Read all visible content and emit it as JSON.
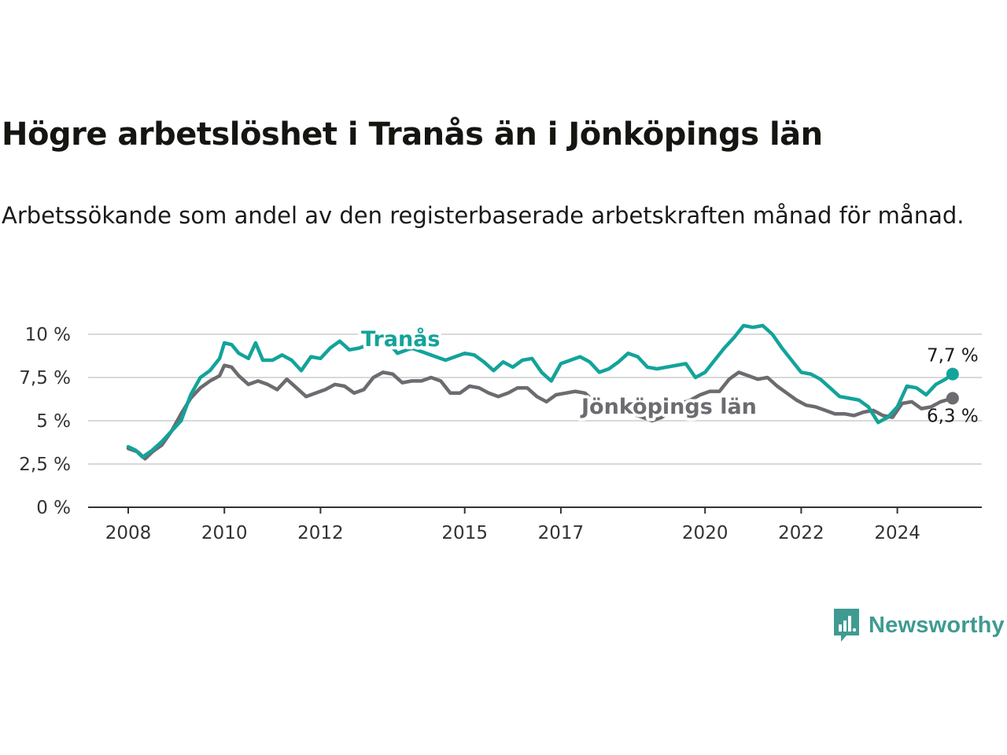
{
  "header": {
    "title": "Högre arbetslöshet i Tranås än i Jönköpings län",
    "subtitle": "Arbetssökande som andel av den registerbaserade arbetskraften månad för månad."
  },
  "brand": {
    "name": "Newsworthy",
    "icon": "newsworthy-logo-icon",
    "color": "#3f9b91"
  },
  "chart_data": {
    "type": "line",
    "title": "Högre arbetslöshet i Tranås än i Jönköpings län",
    "subtitle": "Arbetssökande som andel av den registerbaserade arbetskraften månad för månad.",
    "xlabel": "",
    "ylabel": "",
    "ylim": [
      0,
      10.5
    ],
    "xlim": [
      2007.5,
      2025.5
    ],
    "grid": "horizontal",
    "y_ticks": [
      {
        "value": 0,
        "label": "0 %"
      },
      {
        "value": 2.5,
        "label": "2,5 %"
      },
      {
        "value": 5,
        "label": "5 %"
      },
      {
        "value": 7.5,
        "label": "7,5 %"
      },
      {
        "value": 10,
        "label": "10 %"
      }
    ],
    "x_ticks": [
      {
        "value": 2008,
        "label": "2008"
      },
      {
        "value": 2010,
        "label": "2010"
      },
      {
        "value": 2012,
        "label": "2012"
      },
      {
        "value": 2015,
        "label": "2015"
      },
      {
        "value": 2017,
        "label": "2017"
      },
      {
        "value": 2020,
        "label": "2020"
      },
      {
        "value": 2022,
        "label": "2022"
      },
      {
        "value": 2024,
        "label": "2024"
      }
    ],
    "series": [
      {
        "name": "Tranås",
        "color": "#13a39a",
        "end_label": "7,7 %",
        "points": [
          [
            2008.0,
            3.5
          ],
          [
            2008.15,
            3.3
          ],
          [
            2008.3,
            2.9
          ],
          [
            2008.5,
            3.3
          ],
          [
            2008.7,
            3.8
          ],
          [
            2008.9,
            4.4
          ],
          [
            2009.1,
            5.0
          ],
          [
            2009.3,
            6.5
          ],
          [
            2009.5,
            7.5
          ],
          [
            2009.7,
            7.9
          ],
          [
            2009.9,
            8.6
          ],
          [
            2010.0,
            9.5
          ],
          [
            2010.15,
            9.4
          ],
          [
            2010.3,
            8.9
          ],
          [
            2010.5,
            8.6
          ],
          [
            2010.65,
            9.5
          ],
          [
            2010.8,
            8.5
          ],
          [
            2011.0,
            8.5
          ],
          [
            2011.2,
            8.8
          ],
          [
            2011.4,
            8.5
          ],
          [
            2011.6,
            7.9
          ],
          [
            2011.8,
            8.7
          ],
          [
            2012.0,
            8.6
          ],
          [
            2012.2,
            9.2
          ],
          [
            2012.4,
            9.6
          ],
          [
            2012.6,
            9.1
          ],
          [
            2012.8,
            9.2
          ],
          [
            2013.0,
            9.4
          ],
          [
            2013.3,
            9.9
          ],
          [
            2013.6,
            8.9
          ],
          [
            2013.9,
            9.2
          ],
          [
            2014.1,
            9.0
          ],
          [
            2014.4,
            8.7
          ],
          [
            2014.6,
            8.5
          ],
          [
            2014.8,
            8.7
          ],
          [
            2015.0,
            8.9
          ],
          [
            2015.2,
            8.8
          ],
          [
            2015.4,
            8.4
          ],
          [
            2015.6,
            7.9
          ],
          [
            2015.8,
            8.4
          ],
          [
            2016.0,
            8.1
          ],
          [
            2016.2,
            8.5
          ],
          [
            2016.4,
            8.6
          ],
          [
            2016.6,
            7.8
          ],
          [
            2016.8,
            7.3
          ],
          [
            2017.0,
            8.3
          ],
          [
            2017.2,
            8.5
          ],
          [
            2017.4,
            8.7
          ],
          [
            2017.6,
            8.4
          ],
          [
            2017.8,
            7.8
          ],
          [
            2018.0,
            8.0
          ],
          [
            2018.2,
            8.4
          ],
          [
            2018.4,
            8.9
          ],
          [
            2018.6,
            8.7
          ],
          [
            2018.8,
            8.1
          ],
          [
            2019.0,
            8.0
          ],
          [
            2019.2,
            8.1
          ],
          [
            2019.4,
            8.2
          ],
          [
            2019.6,
            8.3
          ],
          [
            2019.8,
            7.5
          ],
          [
            2020.0,
            7.8
          ],
          [
            2020.2,
            8.5
          ],
          [
            2020.4,
            9.2
          ],
          [
            2020.6,
            9.8
          ],
          [
            2020.8,
            10.5
          ],
          [
            2021.0,
            10.4
          ],
          [
            2021.2,
            10.5
          ],
          [
            2021.4,
            10.0
          ],
          [
            2021.6,
            9.2
          ],
          [
            2021.8,
            8.5
          ],
          [
            2022.0,
            7.8
          ],
          [
            2022.2,
            7.7
          ],
          [
            2022.4,
            7.4
          ],
          [
            2022.6,
            6.9
          ],
          [
            2022.8,
            6.4
          ],
          [
            2023.0,
            6.3
          ],
          [
            2023.2,
            6.2
          ],
          [
            2023.4,
            5.8
          ],
          [
            2023.6,
            4.9
          ],
          [
            2023.8,
            5.2
          ],
          [
            2024.0,
            5.8
          ],
          [
            2024.2,
            7.0
          ],
          [
            2024.4,
            6.9
          ],
          [
            2024.6,
            6.5
          ],
          [
            2024.8,
            7.1
          ],
          [
            2025.0,
            7.4
          ],
          [
            2025.15,
            7.7
          ]
        ]
      },
      {
        "name": "Jönköpings län",
        "color": "#6b6b70",
        "end_label": "6,3 %",
        "points": [
          [
            2008.0,
            3.4
          ],
          [
            2008.2,
            3.2
          ],
          [
            2008.35,
            2.8
          ],
          [
            2008.5,
            3.2
          ],
          [
            2008.7,
            3.6
          ],
          [
            2008.9,
            4.4
          ],
          [
            2009.1,
            5.4
          ],
          [
            2009.3,
            6.3
          ],
          [
            2009.5,
            6.9
          ],
          [
            2009.7,
            7.3
          ],
          [
            2009.9,
            7.6
          ],
          [
            2010.0,
            8.2
          ],
          [
            2010.15,
            8.1
          ],
          [
            2010.3,
            7.6
          ],
          [
            2010.5,
            7.1
          ],
          [
            2010.7,
            7.3
          ],
          [
            2010.9,
            7.1
          ],
          [
            2011.1,
            6.8
          ],
          [
            2011.3,
            7.4
          ],
          [
            2011.5,
            6.9
          ],
          [
            2011.7,
            6.4
          ],
          [
            2011.9,
            6.6
          ],
          [
            2012.1,
            6.8
          ],
          [
            2012.3,
            7.1
          ],
          [
            2012.5,
            7.0
          ],
          [
            2012.7,
            6.6
          ],
          [
            2012.9,
            6.8
          ],
          [
            2013.1,
            7.5
          ],
          [
            2013.3,
            7.8
          ],
          [
            2013.5,
            7.7
          ],
          [
            2013.7,
            7.2
          ],
          [
            2013.9,
            7.3
          ],
          [
            2014.1,
            7.3
          ],
          [
            2014.3,
            7.5
          ],
          [
            2014.5,
            7.3
          ],
          [
            2014.7,
            6.6
          ],
          [
            2014.9,
            6.6
          ],
          [
            2015.1,
            7.0
          ],
          [
            2015.3,
            6.9
          ],
          [
            2015.5,
            6.6
          ],
          [
            2015.7,
            6.4
          ],
          [
            2015.9,
            6.6
          ],
          [
            2016.1,
            6.9
          ],
          [
            2016.3,
            6.9
          ],
          [
            2016.5,
            6.4
          ],
          [
            2016.7,
            6.1
          ],
          [
            2016.9,
            6.5
          ],
          [
            2017.1,
            6.6
          ],
          [
            2017.3,
            6.7
          ],
          [
            2017.5,
            6.6
          ],
          [
            2017.7,
            6.1
          ],
          [
            2017.9,
            5.6
          ],
          [
            2018.1,
            5.4
          ],
          [
            2018.3,
            5.4
          ],
          [
            2018.5,
            5.4
          ],
          [
            2018.7,
            5.2
          ],
          [
            2018.9,
            5.0
          ],
          [
            2019.1,
            5.2
          ],
          [
            2019.3,
            5.6
          ],
          [
            2019.5,
            6.0
          ],
          [
            2019.7,
            6.2
          ],
          [
            2019.9,
            6.5
          ],
          [
            2020.1,
            6.7
          ],
          [
            2020.3,
            6.7
          ],
          [
            2020.5,
            7.4
          ],
          [
            2020.7,
            7.8
          ],
          [
            2020.9,
            7.6
          ],
          [
            2021.1,
            7.4
          ],
          [
            2021.3,
            7.5
          ],
          [
            2021.5,
            7.0
          ],
          [
            2021.7,
            6.6
          ],
          [
            2021.9,
            6.2
          ],
          [
            2022.1,
            5.9
          ],
          [
            2022.3,
            5.8
          ],
          [
            2022.5,
            5.6
          ],
          [
            2022.7,
            5.4
          ],
          [
            2022.9,
            5.4
          ],
          [
            2023.1,
            5.3
          ],
          [
            2023.3,
            5.5
          ],
          [
            2023.5,
            5.6
          ],
          [
            2023.7,
            5.3
          ],
          [
            2023.9,
            5.2
          ],
          [
            2024.1,
            6.0
          ],
          [
            2024.3,
            6.1
          ],
          [
            2024.5,
            5.7
          ],
          [
            2024.7,
            5.8
          ],
          [
            2024.9,
            6.1
          ],
          [
            2025.15,
            6.3
          ]
        ]
      }
    ],
    "annotations": [
      {
        "series": "Tranås",
        "label": "Tranås"
      },
      {
        "series": "Jönköpings län",
        "label": "Jönköpings län"
      }
    ]
  }
}
